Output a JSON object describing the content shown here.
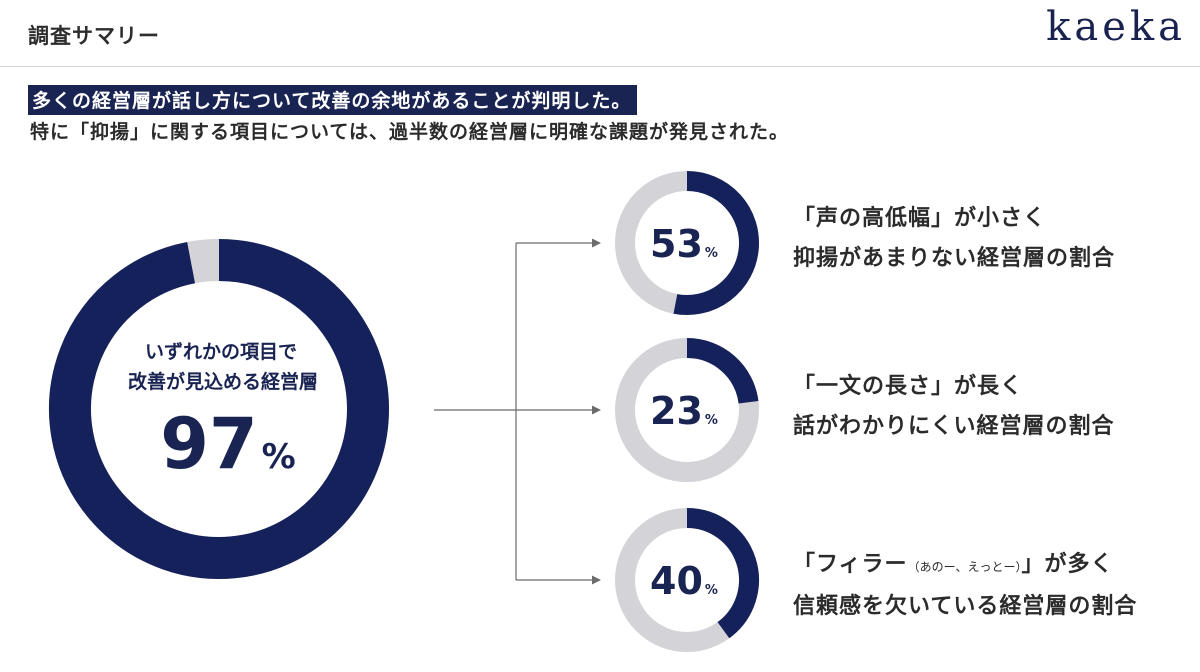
{
  "header": {
    "title": "調査サマリー",
    "brand": "kaeka"
  },
  "summary": {
    "headline": "多くの経営層が話し方について改善の余地があることが判明した。",
    "subline": "特に「抑揚」に関する項目については、過半数の経営層に明確な課題が発見された。"
  },
  "colors": {
    "accent": "#15215a",
    "track": "#d3d3d8"
  },
  "chart_data": [
    {
      "type": "pie",
      "variant": "donut",
      "caption_lines": [
        "いずれかの項目で",
        "改善が見込める経営層"
      ],
      "value": 97,
      "unit": "%"
    },
    {
      "type": "pie",
      "variant": "donut",
      "value": 53,
      "unit": "%",
      "desc_line1": "「声の高低幅」が小さく",
      "desc_line2": "抑揚があまりない経営層の割合"
    },
    {
      "type": "pie",
      "variant": "donut",
      "value": 23,
      "unit": "%",
      "desc_line1": "「一文の長さ」が長く",
      "desc_line2": "話がわかりにくい経営層の割合"
    },
    {
      "type": "pie",
      "variant": "donut",
      "value": 40,
      "unit": "%",
      "desc_line1_pre": "「フィラー",
      "desc_line1_note": "（あのー、えっとー）",
      "desc_line1_post": "」が多く",
      "desc_line2": "信頼感を欠いている経営層の割合"
    }
  ]
}
